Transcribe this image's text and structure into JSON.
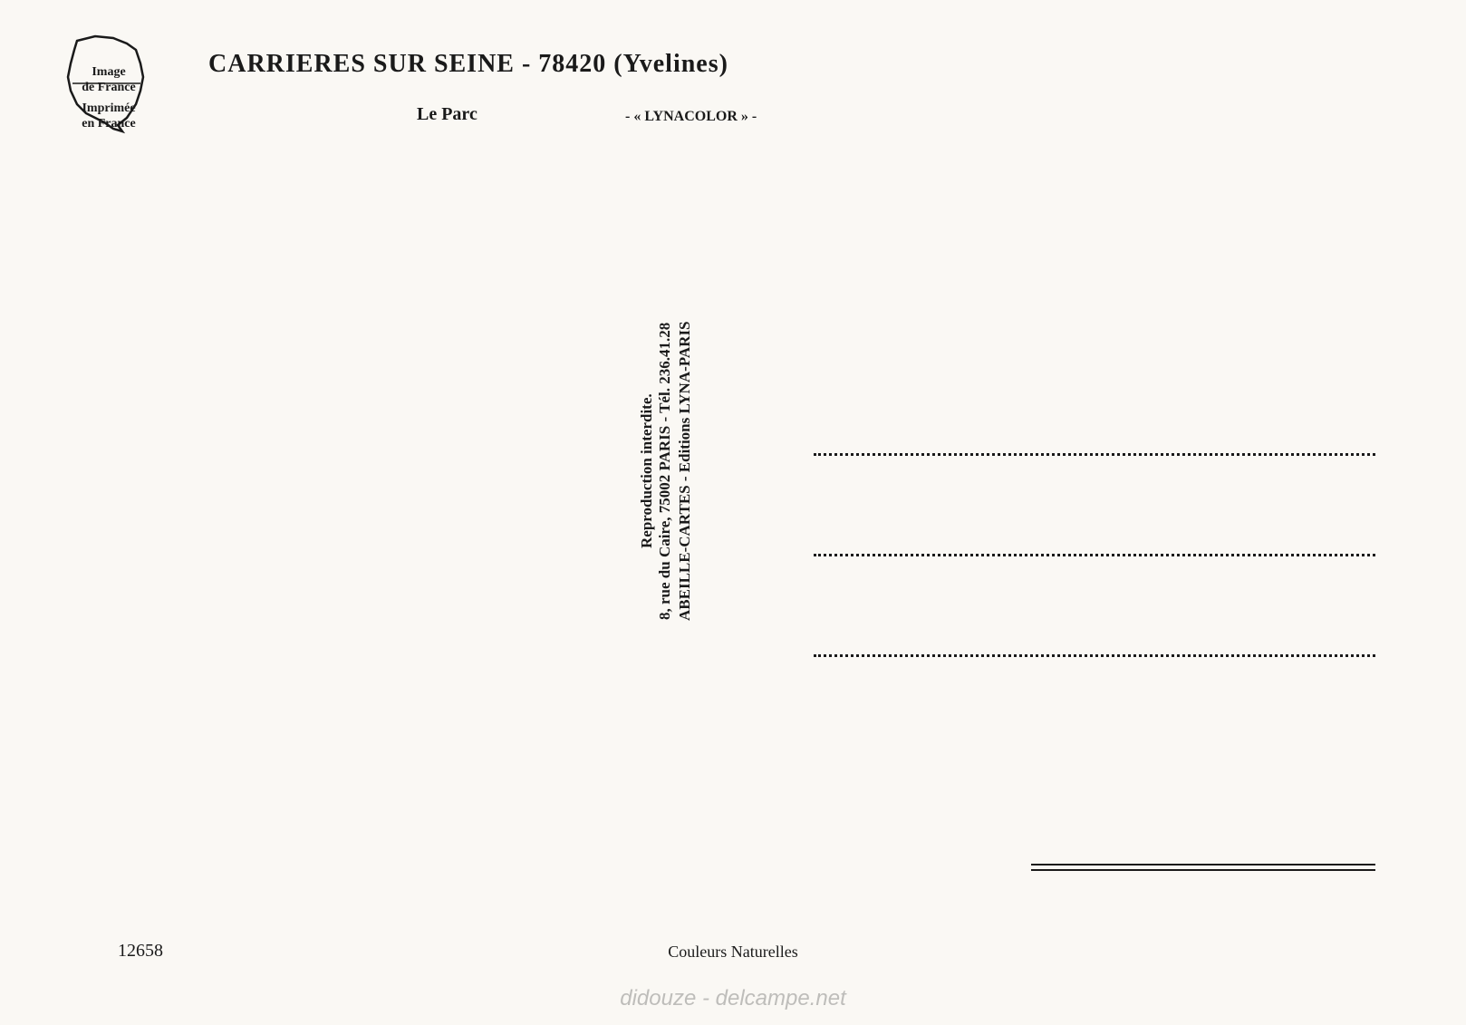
{
  "logo": {
    "text_top": "Image\nde France",
    "text_bottom": "Imprimée\nen France"
  },
  "header": {
    "title": "CARRIERES SUR SEINE - 78420 (Yvelines)",
    "subtitle": "Le Parc",
    "brand": "- « LYNACOLOR » -"
  },
  "publisher": {
    "line1": "ABEILLE-CARTES - Editions LYNA-PARIS",
    "line2": "8, rue du Caire, 75002 PARIS - Tél. 236.41.28",
    "line3": "Reproduction interdite."
  },
  "card_number": "12658",
  "footer": "Couleurs Naturelles",
  "watermark": "didouze - delcampe.net",
  "styling": {
    "background_color": "#faf8f4",
    "text_color": "#1a1a1a",
    "title_fontsize": 28,
    "subtitle_fontsize": 20,
    "publisher_fontsize": 17,
    "footer_fontsize": 18,
    "address_line_count": 3,
    "address_line_spacing": 108,
    "address_line_style": "dotted",
    "address_line_width": 620,
    "double_line_width": 380
  }
}
